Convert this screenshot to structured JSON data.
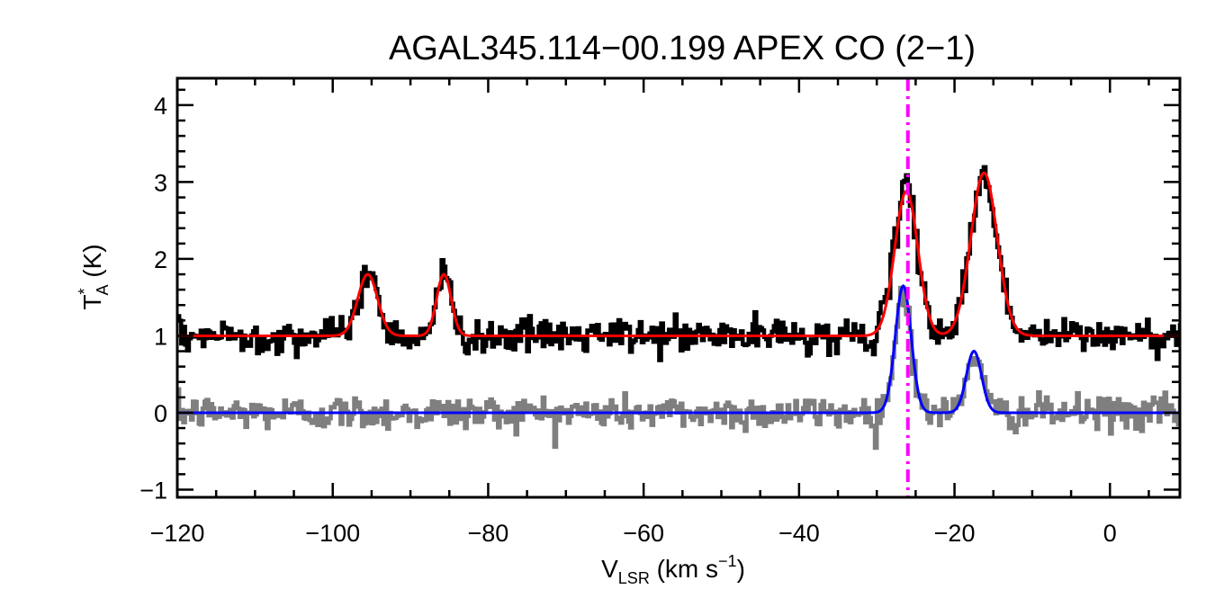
{
  "chart_data": {
    "type": "line",
    "title": "AGAL345.114−00.199  APEX CO (2−1)",
    "xlabel": {
      "main": "V",
      "sub": "LSR",
      "unit_pre": " (km s",
      "sup": "−1",
      "unit_post": ")"
    },
    "ylabel": {
      "main": "T",
      "sup": "*",
      "sub": "A",
      "unit": " (K)"
    },
    "xlim": [
      -120,
      9
    ],
    "ylim": [
      -1.1,
      4.35
    ],
    "xticks": [
      -120,
      -100,
      -80,
      -60,
      -40,
      -20,
      0
    ],
    "xtick_labels": [
      "−120",
      "−100",
      "−80",
      "−60",
      "−40",
      "−20",
      "0"
    ],
    "yticks": [
      -1,
      0,
      1,
      2,
      3,
      4
    ],
    "ytick_labels": [
      "−1",
      "0",
      "1",
      "2",
      "3",
      "4"
    ],
    "x_minor_step": 5,
    "y_minor_step": 0.2,
    "grid": false,
    "vline": {
      "x": -26,
      "color": "#ff00ff",
      "style": "dash-dot"
    },
    "series": [
      {
        "role": "observed spectrum",
        "color": "#000000",
        "baseline": 1.0,
        "noise_rms": 0.11,
        "channel_width": 0.25,
        "components": [
          {
            "center": -95.5,
            "amplitude": 0.8,
            "fwhm": 3.0
          },
          {
            "center": -85.7,
            "amplitude": 0.8,
            "fwhm": 2.2
          },
          {
            "center": -26.2,
            "amplitude": 1.9,
            "fwhm": 3.5
          },
          {
            "center": -16.2,
            "amplitude": 2.1,
            "fwhm": 4.0
          }
        ]
      },
      {
        "role": "observed spectrum",
        "color": "#7f7f7f",
        "baseline": 0.0,
        "noise_rms": 0.11,
        "channel_width": 0.25,
        "components": [
          {
            "center": -26.6,
            "amplitude": 1.6,
            "fwhm": 2.4
          },
          {
            "center": -17.5,
            "amplitude": 0.8,
            "fwhm": 2.3
          }
        ]
      },
      {
        "role": "gaussian fit",
        "color": "#ff0000",
        "baseline": 1.0,
        "components": [
          {
            "center": -95.5,
            "amplitude": 0.8,
            "fwhm": 3.0
          },
          {
            "center": -85.7,
            "amplitude": 0.8,
            "fwhm": 2.2
          },
          {
            "center": -26.2,
            "amplitude": 1.88,
            "fwhm": 3.5
          },
          {
            "center": -16.2,
            "amplitude": 2.12,
            "fwhm": 4.0
          }
        ]
      },
      {
        "role": "gaussian fit",
        "color": "#0000ff",
        "baseline": 0.0,
        "components": [
          {
            "center": -26.6,
            "amplitude": 1.65,
            "fwhm": 2.4
          },
          {
            "center": -17.5,
            "amplitude": 0.8,
            "fwhm": 2.3
          }
        ]
      }
    ]
  }
}
